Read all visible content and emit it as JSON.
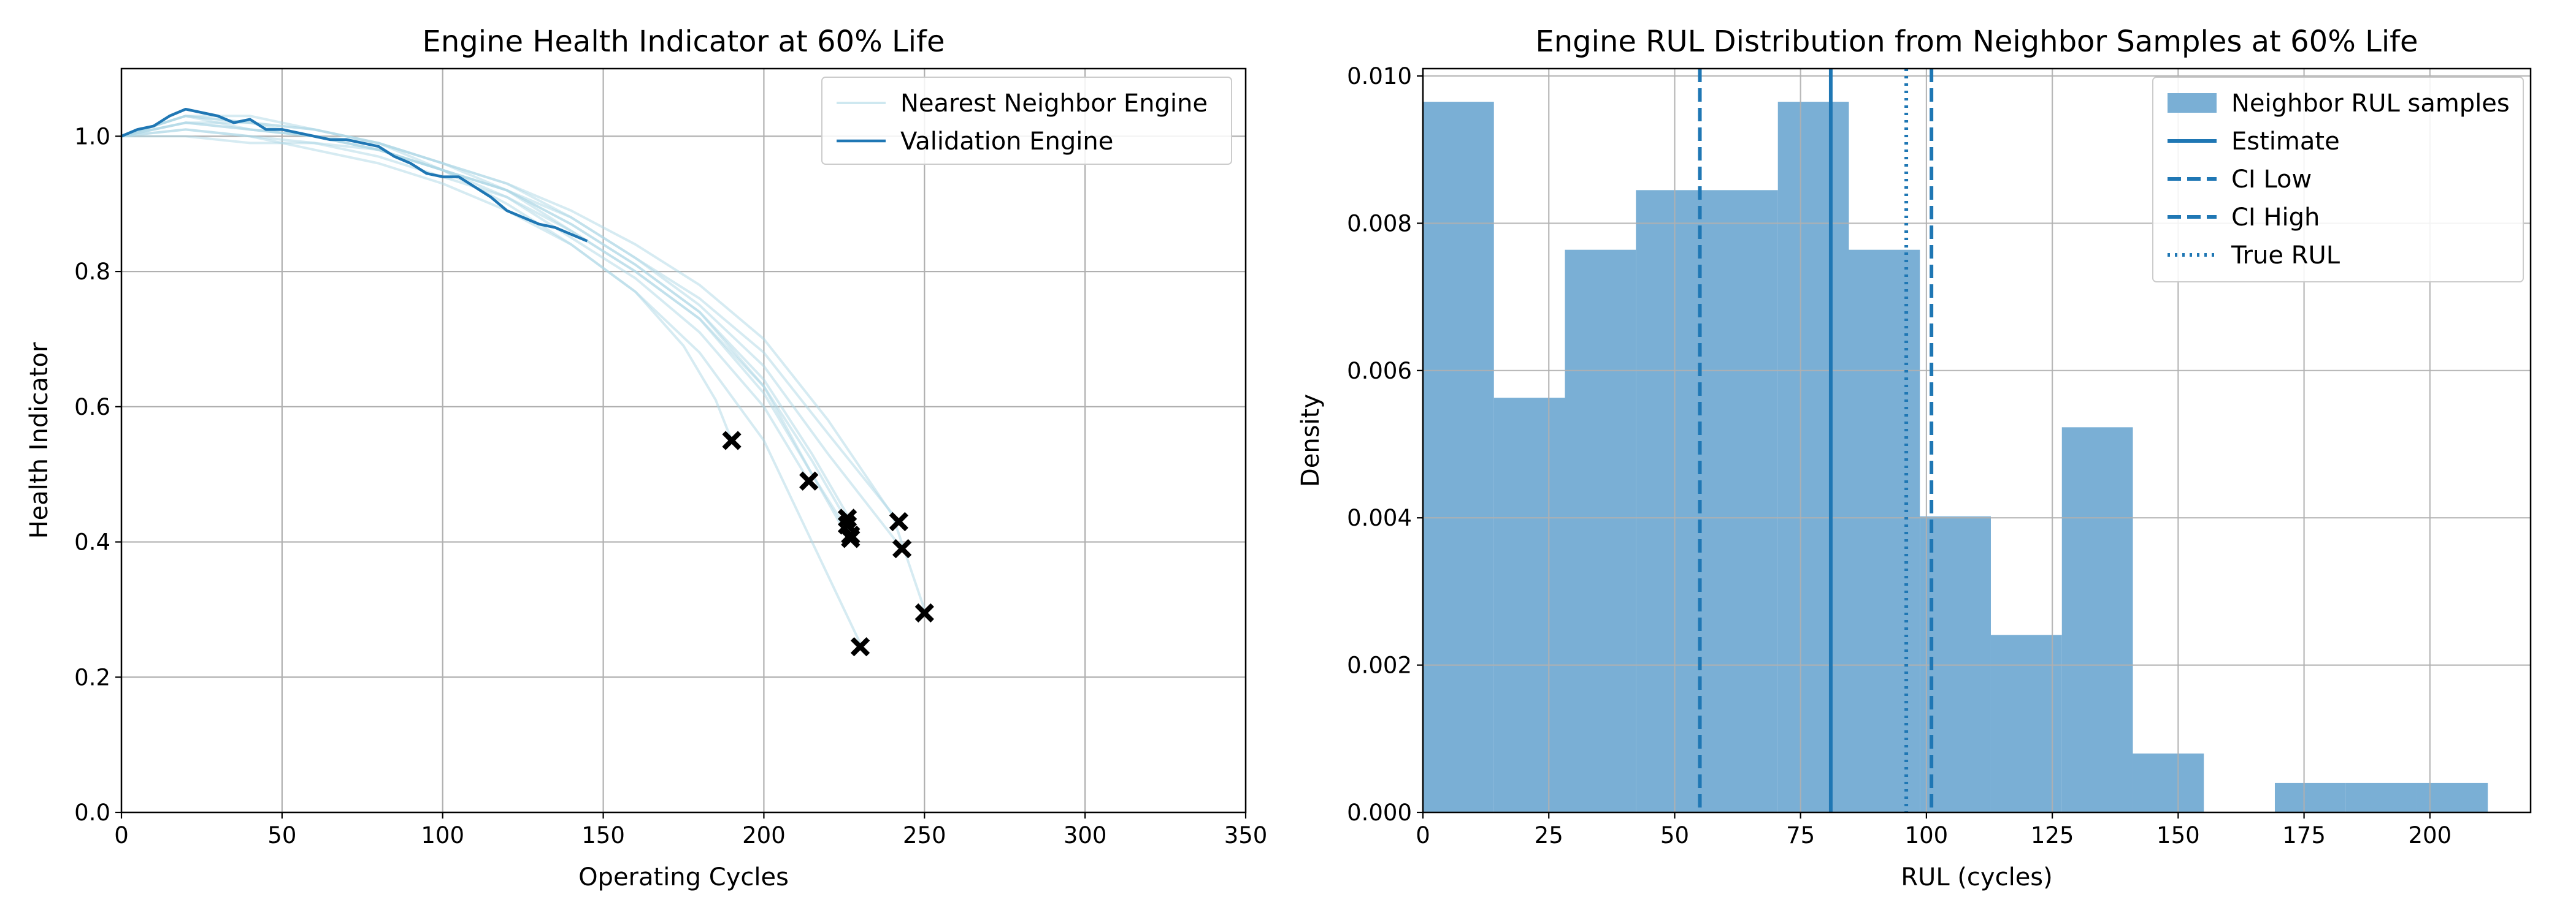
{
  "chart_data": [
    {
      "type": "line",
      "title": "Engine Health Indicator at 60% Life",
      "xlabel": "Operating Cycles",
      "ylabel": "Health Indicator",
      "xlim": [
        0,
        350
      ],
      "ylim": [
        0,
        1.1
      ],
      "xticks": [
        0,
        50,
        100,
        150,
        200,
        250,
        300,
        350
      ],
      "yticks": [
        0.0,
        0.2,
        0.4,
        0.6,
        0.8,
        1.0
      ],
      "grid": true,
      "legend_position": "top-right",
      "legend": [
        "Nearest Neighbor Engine",
        "Validation Engine"
      ],
      "colors": {
        "neighbor": "#add8e6",
        "validation": "#1f77b4",
        "marker": "#000000"
      },
      "neighbor_engines": [
        {
          "x": [
            0,
            20,
            40,
            60,
            80,
            100,
            120,
            140,
            160,
            175,
            185,
            190
          ],
          "y": [
            1.0,
            1.03,
            1.01,
            1.0,
            0.99,
            0.95,
            0.9,
            0.84,
            0.77,
            0.69,
            0.61,
            0.55
          ]
        },
        {
          "x": [
            0,
            20,
            40,
            60,
            80,
            100,
            120,
            140,
            160,
            180,
            200,
            214
          ],
          "y": [
            1.0,
            1.02,
            1.02,
            1.0,
            0.98,
            0.95,
            0.91,
            0.85,
            0.79,
            0.71,
            0.6,
            0.49
          ]
        },
        {
          "x": [
            0,
            20,
            40,
            60,
            80,
            100,
            120,
            140,
            160,
            180,
            200,
            215,
            226
          ],
          "y": [
            1.0,
            1.01,
            1.0,
            0.99,
            0.98,
            0.95,
            0.92,
            0.86,
            0.8,
            0.73,
            0.63,
            0.52,
            0.43
          ]
        },
        {
          "x": [
            0,
            20,
            40,
            60,
            80,
            100,
            120,
            140,
            160,
            180,
            200,
            215,
            226
          ],
          "y": [
            1.0,
            1.03,
            1.02,
            1.01,
            0.99,
            0.96,
            0.92,
            0.87,
            0.81,
            0.74,
            0.64,
            0.53,
            0.44
          ]
        },
        {
          "x": [
            0,
            20,
            40,
            60,
            80,
            100,
            120,
            140,
            160,
            180,
            200,
            215,
            227
          ],
          "y": [
            1.0,
            1.0,
            0.99,
            0.99,
            0.97,
            0.94,
            0.91,
            0.86,
            0.8,
            0.73,
            0.62,
            0.5,
            0.41
          ]
        },
        {
          "x": [
            0,
            20,
            40,
            60,
            80,
            100,
            120,
            140,
            160,
            180,
            200,
            215,
            227
          ],
          "y": [
            1.0,
            1.02,
            1.01,
            1.0,
            0.98,
            0.95,
            0.92,
            0.87,
            0.81,
            0.74,
            0.63,
            0.5,
            0.4
          ]
        },
        {
          "x": [
            0,
            20,
            40,
            60,
            80,
            100,
            120,
            140,
            160,
            180,
            200,
            215,
            230
          ],
          "y": [
            1.0,
            1.01,
            1.0,
            0.98,
            0.96,
            0.93,
            0.89,
            0.84,
            0.77,
            0.68,
            0.55,
            0.4,
            0.25
          ]
        },
        {
          "x": [
            0,
            20,
            40,
            60,
            80,
            100,
            120,
            140,
            160,
            180,
            200,
            220,
            242
          ],
          "y": [
            1.0,
            1.03,
            1.02,
            1.01,
            0.99,
            0.96,
            0.93,
            0.88,
            0.82,
            0.76,
            0.68,
            0.56,
            0.43
          ]
        },
        {
          "x": [
            0,
            20,
            40,
            60,
            80,
            100,
            120,
            140,
            160,
            180,
            200,
            220,
            243
          ],
          "y": [
            1.0,
            1.02,
            1.01,
            1.0,
            0.98,
            0.95,
            0.92,
            0.88,
            0.82,
            0.75,
            0.66,
            0.53,
            0.39
          ]
        },
        {
          "x": [
            0,
            20,
            40,
            60,
            80,
            100,
            120,
            140,
            160,
            180,
            200,
            220,
            240,
            250
          ],
          "y": [
            1.0,
            1.03,
            1.03,
            1.01,
            0.99,
            0.96,
            0.93,
            0.89,
            0.84,
            0.78,
            0.7,
            0.58,
            0.44,
            0.3
          ]
        }
      ],
      "end_markers": {
        "x": [
          190,
          214,
          226,
          226,
          227,
          227,
          230,
          242,
          243,
          250
        ],
        "y": [
          0.55,
          0.49,
          0.435,
          0.425,
          0.41,
          0.405,
          0.245,
          0.43,
          0.39,
          0.295
        ]
      },
      "validation_engine": {
        "x": [
          0,
          5,
          10,
          15,
          20,
          25,
          30,
          35,
          40,
          45,
          50,
          55,
          60,
          65,
          70,
          75,
          80,
          85,
          90,
          95,
          100,
          105,
          110,
          115,
          120,
          125,
          130,
          135,
          140,
          145
        ],
        "y": [
          1.0,
          1.01,
          1.015,
          1.03,
          1.04,
          1.035,
          1.03,
          1.02,
          1.025,
          1.01,
          1.01,
          1.005,
          1.0,
          0.995,
          0.995,
          0.99,
          0.985,
          0.97,
          0.96,
          0.945,
          0.94,
          0.94,
          0.925,
          0.91,
          0.89,
          0.88,
          0.87,
          0.865,
          0.855,
          0.845
        ]
      }
    },
    {
      "type": "bar",
      "title": "Engine RUL Distribution from Neighbor Samples at 60% Life",
      "xlabel": "RUL (cycles)",
      "ylabel": "Density",
      "xlim": [
        0,
        220
      ],
      "ylim": [
        0,
        0.0101
      ],
      "xticks": [
        0,
        25,
        50,
        75,
        100,
        125,
        150,
        175,
        200
      ],
      "yticks": [
        0.0,
        0.002,
        0.004,
        0.006,
        0.008,
        0.01
      ],
      "grid": true,
      "legend_position": "top-right",
      "legend": [
        "Neighbor RUL samples",
        "Estimate",
        "CI Low",
        "CI High",
        "True RUL"
      ],
      "colors": {
        "bars": "#7aafd5",
        "lines": "#1f77b4"
      },
      "bins": [
        {
          "start": 0,
          "end": 14.1,
          "density": 0.00965
        },
        {
          "start": 14.1,
          "end": 28.2,
          "density": 0.00563
        },
        {
          "start": 28.2,
          "end": 42.3,
          "density": 0.00764
        },
        {
          "start": 42.3,
          "end": 56.4,
          "density": 0.00845
        },
        {
          "start": 56.4,
          "end": 70.5,
          "density": 0.00845
        },
        {
          "start": 70.5,
          "end": 84.6,
          "density": 0.00965
        },
        {
          "start": 84.6,
          "end": 98.7,
          "density": 0.00764
        },
        {
          "start": 98.7,
          "end": 112.8,
          "density": 0.00402
        },
        {
          "start": 112.8,
          "end": 126.9,
          "density": 0.00241
        },
        {
          "start": 126.9,
          "end": 141.0,
          "density": 0.00523
        },
        {
          "start": 141.0,
          "end": 155.1,
          "density": 0.0008
        },
        {
          "start": 155.1,
          "end": 169.2,
          "density": 0.0
        },
        {
          "start": 169.2,
          "end": 183.3,
          "density": 0.0004
        },
        {
          "start": 183.3,
          "end": 197.4,
          "density": 0.0004
        },
        {
          "start": 197.4,
          "end": 211.5,
          "density": 0.0004
        }
      ],
      "estimate": 81,
      "ci_low": 55,
      "ci_high": 101,
      "true_rul": 96
    }
  ]
}
